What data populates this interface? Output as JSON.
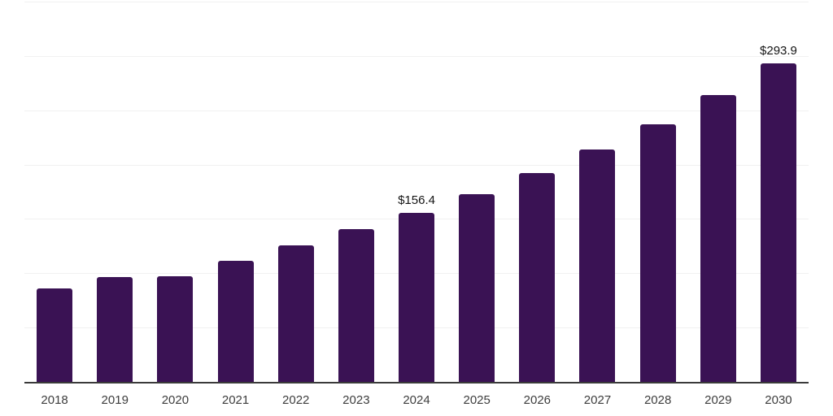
{
  "chart_data": {
    "type": "bar",
    "title": "",
    "xlabel": "",
    "ylabel": "",
    "categories": [
      "2018",
      "2019",
      "2020",
      "2021",
      "2022",
      "2023",
      "2024",
      "2025",
      "2026",
      "2027",
      "2028",
      "2029",
      "2030"
    ],
    "values": [
      87.0,
      97.0,
      98.0,
      111.9,
      126.6,
      141.5,
      156.4,
      173.7,
      193.0,
      214.4,
      238.2,
      264.6,
      293.9
    ],
    "data_labels": [
      null,
      null,
      null,
      null,
      null,
      null,
      "$156.4",
      null,
      null,
      null,
      null,
      null,
      "$293.9"
    ],
    "ylim": [
      0,
      350
    ],
    "gridline_step": 50,
    "grid": true,
    "legend": false,
    "colors": {
      "bar": "#3A1254",
      "axis_line": "#3a3a3a",
      "gridline": "#f1f1f1",
      "x_tick_text": "#3d3d3d",
      "data_label_text": "#141414",
      "background": "#ffffff"
    }
  }
}
